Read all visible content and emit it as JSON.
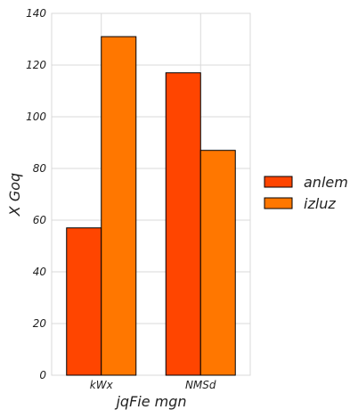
{
  "chart_data": {
    "type": "bar",
    "categories": [
      "kWx",
      "NMSd"
    ],
    "series": [
      {
        "name": "anlem",
        "values": [
          57,
          117
        ],
        "color": "#ff4500"
      },
      {
        "name": "izluz",
        "values": [
          131,
          87
        ],
        "color": "#ff7700"
      }
    ],
    "title": "",
    "xlabel": "jqFie  mgn",
    "ylabel": "X Goq",
    "ylim": [
      0,
      140
    ],
    "yticks": [
      0,
      20,
      40,
      60,
      80,
      100,
      120,
      140
    ],
    "grid": true,
    "legend_position": "right",
    "colors": {
      "grid": "#d9d9d9",
      "frame": "#d9d9d9",
      "bar_edge": "#000000"
    }
  }
}
